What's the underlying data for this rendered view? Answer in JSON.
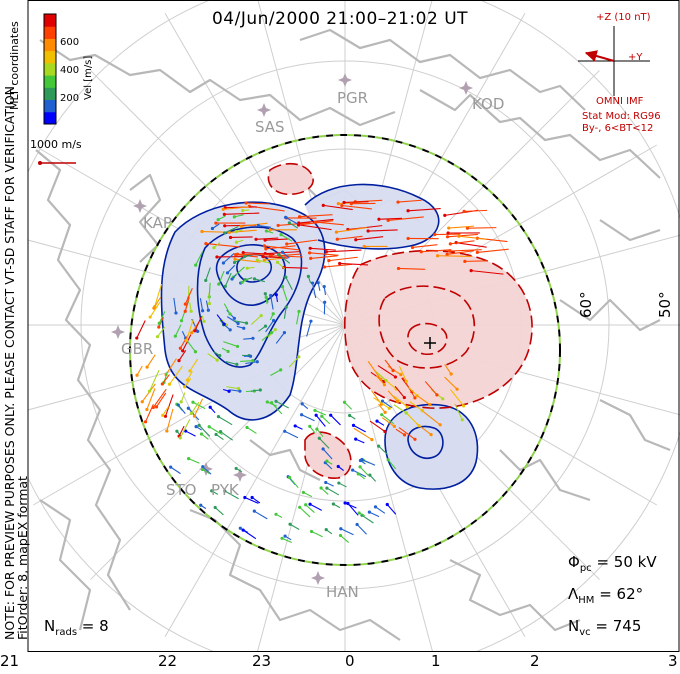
{
  "title": "04/Jun/2000 21:00–21:02 UT",
  "side_note": {
    "line1": "NOTE: FOR PREVIEW PURPOSES ONLY. PLEASE CONTACT VT-SD STAFF FOR VERIFICATION.",
    "line2": "FitOrder: 8, mapEX format"
  },
  "mlt_label": "MLT coordinates",
  "colorbar": {
    "label": "Vel [m/s]",
    "ticks": [
      "600",
      "400",
      "200"
    ],
    "colors": [
      "#0000ff",
      "#2060d0",
      "#2e9a5a",
      "#44c83a",
      "#a8d820",
      "#f0c000",
      "#ff8c00",
      "#ff4000",
      "#e00000"
    ]
  },
  "reference_vector": "1000 m/s",
  "imf": {
    "scale": "+Z (10 nT)",
    "y_axis": "+Y",
    "source": "OMNI IMF",
    "model_line1": "Stat Mod: RG96",
    "model_line2": "By-, 6<BT<12"
  },
  "sites": [
    "PGR",
    "KOD",
    "SAS",
    "KAP",
    "GBR",
    "STO",
    "PYK",
    "HAN"
  ],
  "lat_labels": [
    "60°",
    "50°"
  ],
  "mlt_hours": [
    "21",
    "22",
    "23",
    "0",
    "1",
    "2",
    "3"
  ],
  "stats": {
    "phi_sym": "Φ",
    "phi_sub": "pc",
    "phi_val": " = 50 kV",
    "lam_sym": "Λ",
    "lam_sub": "HM",
    "lam_val": " = 62°",
    "nvc_sym": "N",
    "nvc_sub": "vc",
    "nvc_val": " = 745",
    "nrads_sym": "N",
    "nrads_sub": "rads",
    "nrads_val": " = 8"
  },
  "colors": {
    "positive": "#c00000",
    "negative": "#0020a0",
    "pos_fill": "#f4d4d4",
    "neg_fill": "#d8dcf0",
    "coast": "#b8b8b8",
    "hmb_a": "#000000",
    "hmb_b": "#8fd34a"
  }
}
